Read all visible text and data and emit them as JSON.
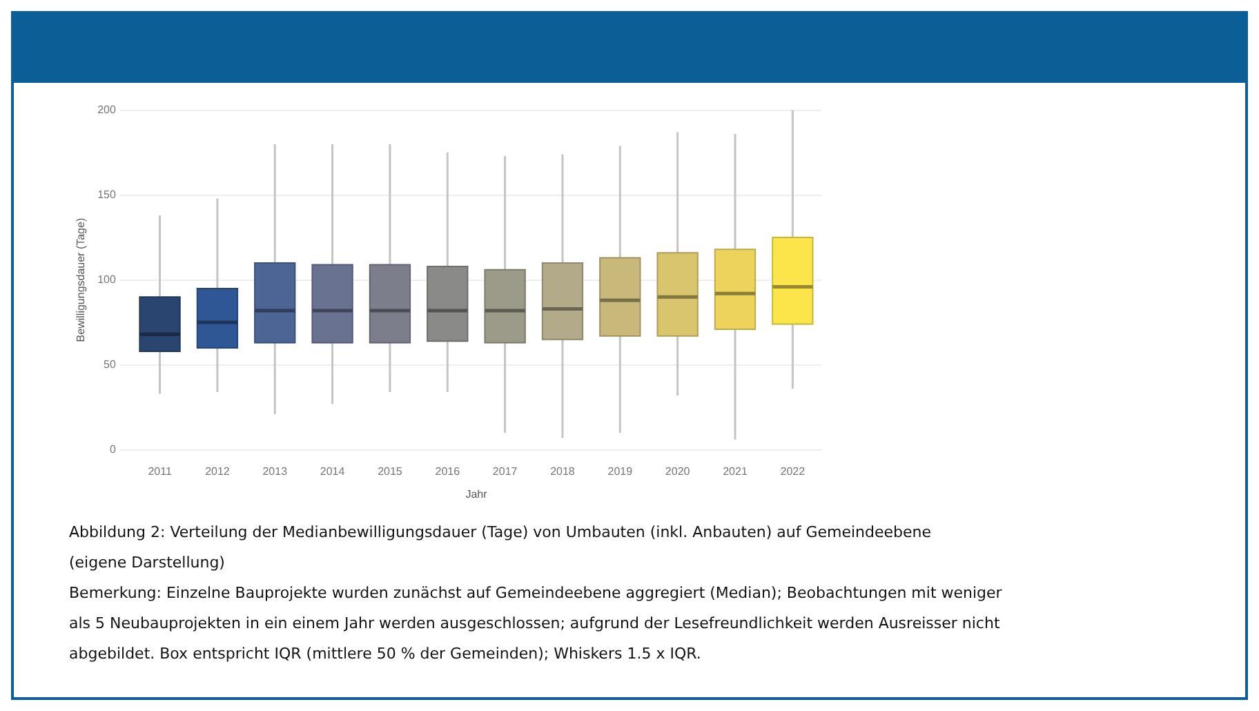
{
  "chart_data": {
    "type": "box",
    "xlabel": "Jahr",
    "ylabel": "Bewilligungsdauer (Tage)",
    "categories": [
      "2011",
      "2012",
      "2013",
      "2014",
      "2015",
      "2016",
      "2017",
      "2018",
      "2019",
      "2020",
      "2021",
      "2022"
    ],
    "boxes": [
      {
        "low": 33,
        "q1": 58,
        "median": 68,
        "q3": 90,
        "high": 138
      },
      {
        "low": 34,
        "q1": 60,
        "median": 75,
        "q3": 95,
        "high": 148
      },
      {
        "low": 21,
        "q1": 63,
        "median": 82,
        "q3": 110,
        "high": 180
      },
      {
        "low": 27,
        "q1": 63,
        "median": 82,
        "q3": 109,
        "high": 180
      },
      {
        "low": 34,
        "q1": 63,
        "median": 82,
        "q3": 109,
        "high": 180
      },
      {
        "low": 34,
        "q1": 64,
        "median": 82,
        "q3": 108,
        "high": 175
      },
      {
        "low": 10,
        "q1": 63,
        "median": 82,
        "q3": 106,
        "high": 173
      },
      {
        "low": 7,
        "q1": 65,
        "median": 83,
        "q3": 110,
        "high": 174
      },
      {
        "low": 10,
        "q1": 67,
        "median": 88,
        "q3": 113,
        "high": 179
      },
      {
        "low": 32,
        "q1": 67,
        "median": 90,
        "q3": 116,
        "high": 187
      },
      {
        "low": 6,
        "q1": 71,
        "median": 92,
        "q3": 118,
        "high": 186
      },
      {
        "low": 36,
        "q1": 74,
        "median": 96,
        "q3": 125,
        "high": 200
      }
    ],
    "colors": [
      "#2a4670",
      "#2f5796",
      "#4c6594",
      "#6a7292",
      "#7c7e8c",
      "#8a8a88",
      "#9c9a88",
      "#b2aa88",
      "#c8b87a",
      "#d9c56e",
      "#ecd45c",
      "#fbe54a"
    ],
    "ylim": [
      0,
      200
    ],
    "yticks": [
      0,
      50,
      100,
      150,
      200
    ],
    "grid": "y",
    "annotations": [
      "Abbildung 2: Verteilung der Medianbewilligungsdauer (Tage) von Umbauten (inkl. Anbauten) auf Gemeindeebene",
      "(eigene Darstellung)",
      "Bemerkung: Einzelne Bauprojekte wurden zunächst auf Gemeindeebene aggregiert (Median); Beobachtungen mit weniger als 5 Neubauprojekten in ein einem Jahr werden ausgeschlossen; aufgrund der Lesefreundlichkeit werden Ausreisser nicht abgebildet. Box entspricht IQR (mittlere 50 % der Gemeinden); Whiskers 1.5 x IQR."
    ]
  }
}
